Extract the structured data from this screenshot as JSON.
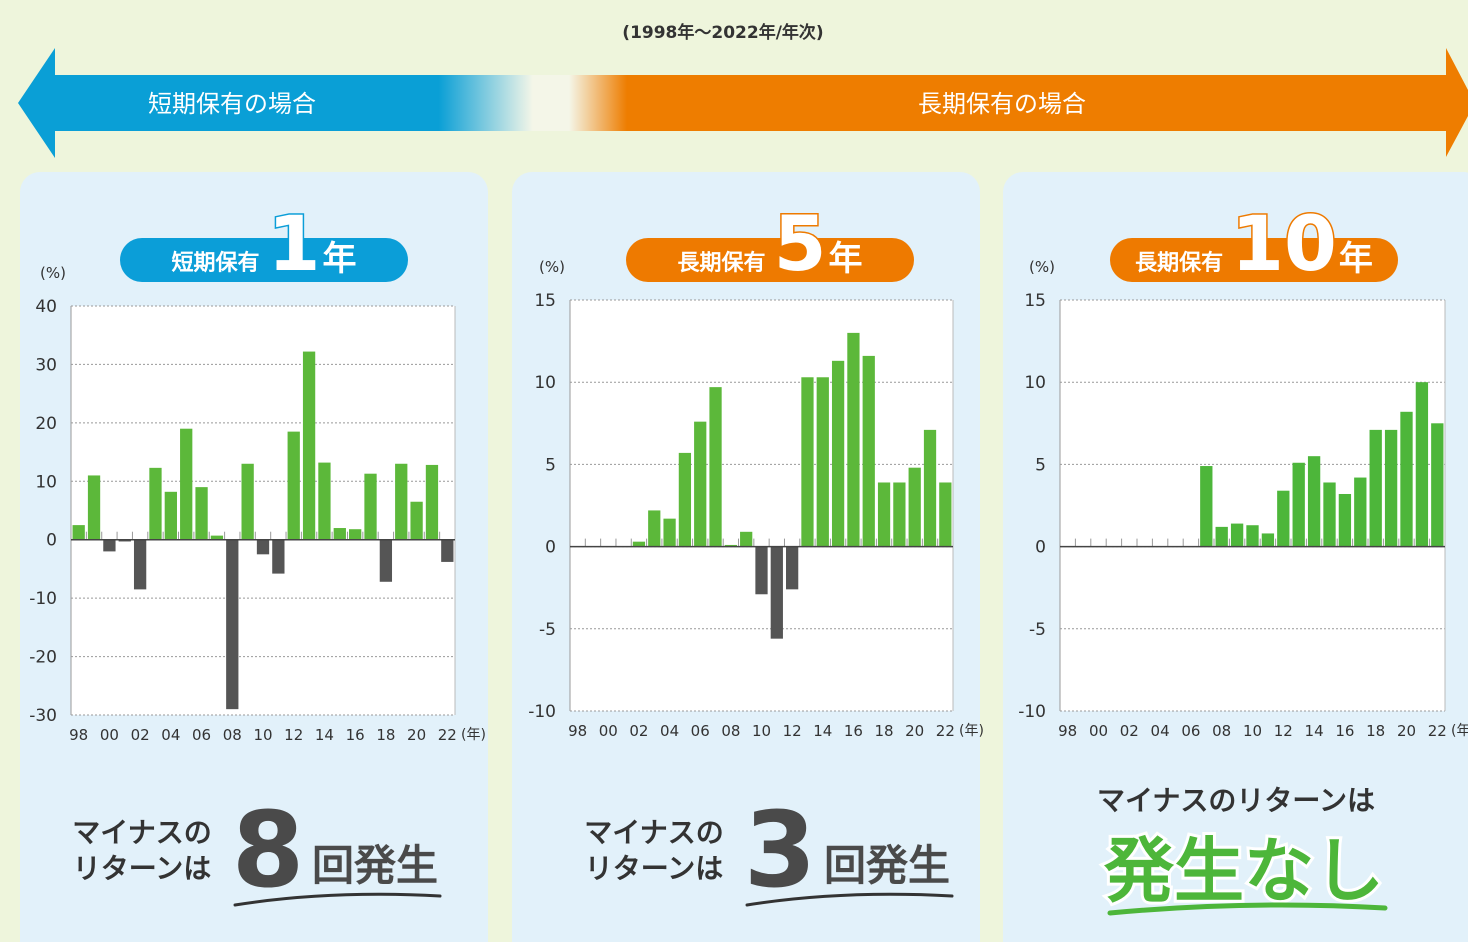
{
  "header": {
    "period": "(1998年～2022年/年次)",
    "short_label": "短期保有の場合",
    "long_label": "長期保有の場合"
  },
  "panels": [
    {
      "badge_prefix": "短期保有",
      "badge_number": "1",
      "badge_suffix": "年",
      "summary_lines": [
        "マイナスの",
        "リターンは"
      ],
      "summary_number": "8",
      "summary_suffix": "回発生"
    },
    {
      "badge_prefix": "長期保有",
      "badge_number": "5",
      "badge_suffix": "年",
      "summary_lines": [
        "マイナスの",
        "リターンは"
      ],
      "summary_number": "3",
      "summary_suffix": "回発生"
    },
    {
      "badge_prefix": "長期保有",
      "badge_number": "10",
      "badge_suffix": "年",
      "summary_lines": [
        "マイナスのリターンは"
      ],
      "summary_big": "発生なし"
    }
  ],
  "chart_data": [
    {
      "type": "bar",
      "y_unit": "(%)",
      "x_unit": "(年)",
      "color": "#5cb83a",
      "negative_color": "#555555",
      "grid": true,
      "categories": [
        "98",
        null,
        "00",
        null,
        "02",
        null,
        "04",
        null,
        "06",
        null,
        "08",
        null,
        "10",
        null,
        "12",
        null,
        "14",
        null,
        "16",
        null,
        "18",
        null,
        "20",
        null,
        "22"
      ],
      "values": [
        2.5,
        11,
        -2,
        -0.3,
        -8.5,
        12.3,
        8.2,
        19,
        9,
        0.7,
        -29,
        13,
        -2.5,
        -5.8,
        18.5,
        32.2,
        13.2,
        2,
        1.8,
        11.3,
        -7.2,
        13,
        6.5,
        12.8,
        -3.8
      ],
      "ylim": [
        -30,
        40
      ],
      "yticks": [
        -30,
        -20,
        -10,
        0,
        10,
        20,
        30,
        40
      ]
    },
    {
      "type": "bar",
      "y_unit": "(%)",
      "x_unit": "(年)",
      "color": "#5cb83a",
      "negative_color": "#555555",
      "grid": true,
      "categories": [
        "98",
        null,
        "00",
        null,
        "02",
        null,
        "04",
        null,
        "06",
        null,
        "08",
        null,
        "10",
        null,
        "12",
        null,
        "14",
        null,
        "16",
        null,
        "18",
        null,
        "20",
        null,
        "22"
      ],
      "values": [
        null,
        null,
        null,
        null,
        0.3,
        2.2,
        1.7,
        5.7,
        7.6,
        9.7,
        0.1,
        0.9,
        -2.9,
        -5.6,
        -2.6,
        10.3,
        10.3,
        11.3,
        13,
        11.6,
        3.9,
        3.9,
        4.8,
        7.1,
        3.9
      ],
      "ylim": [
        -10,
        15
      ],
      "yticks": [
        -10,
        -5,
        0,
        5,
        10,
        15
      ]
    },
    {
      "type": "bar",
      "y_unit": "(%)",
      "x_unit": "(年)",
      "color": "#4db63a",
      "negative_color": "#555555",
      "grid": true,
      "categories": [
        "98",
        null,
        "00",
        null,
        "02",
        null,
        "04",
        null,
        "06",
        null,
        "08",
        null,
        "10",
        null,
        "12",
        null,
        "14",
        null,
        "16",
        null,
        "18",
        null,
        "20",
        null,
        "22"
      ],
      "values": [
        null,
        null,
        null,
        null,
        null,
        null,
        null,
        null,
        null,
        4.9,
        1.2,
        1.4,
        1.3,
        0.8,
        3.4,
        5.1,
        5.5,
        3.9,
        3.2,
        4.2,
        7.1,
        7.1,
        8.2,
        10,
        7.5
      ],
      "ylim": [
        -10,
        15
      ],
      "yticks": [
        -10,
        -5,
        0,
        5,
        10,
        15
      ]
    }
  ]
}
